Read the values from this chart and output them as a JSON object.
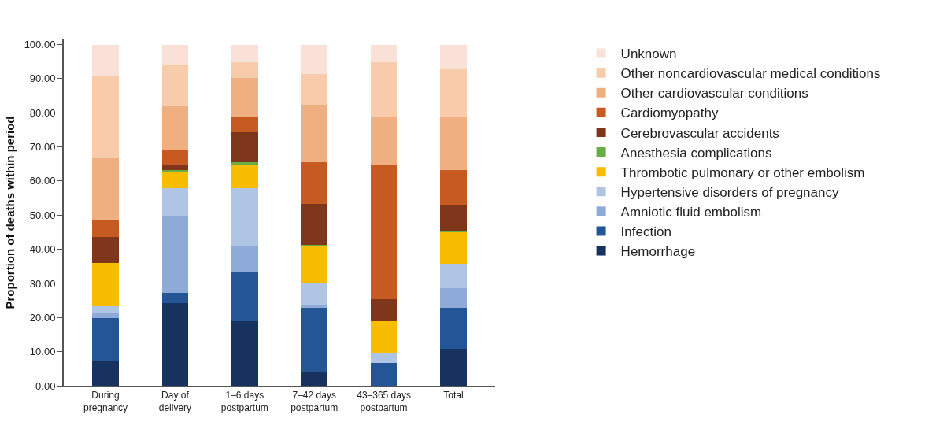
{
  "chart_data": {
    "type": "bar",
    "stacked": true,
    "ylabel": "Proportion of deaths within period",
    "categories": [
      "During\npregnancy",
      "Day of\ndelivery",
      "1–6 days\npostpartum",
      "7–42 days\npostpartum",
      "43–365 days\npostpartum",
      "Total"
    ],
    "ylim": [
      0,
      101.5
    ],
    "yticks": [
      {
        "value": 0,
        "label": "0.00"
      },
      {
        "value": 10,
        "label": "10.00"
      },
      {
        "value": 20,
        "label": "20.00"
      },
      {
        "value": 30,
        "label": "30.00"
      },
      {
        "value": 40,
        "label": "40.00"
      },
      {
        "value": 50,
        "label": "50.00"
      },
      {
        "value": 60,
        "label": "60.00"
      },
      {
        "value": 70,
        "label": "70.00"
      },
      {
        "value": 80,
        "label": "80.00"
      },
      {
        "value": 90,
        "label": "90.00"
      },
      {
        "value": 100,
        "label": "100.00"
      }
    ],
    "legend": "right",
    "series": [
      {
        "name": "Hemorrhage",
        "color": "#17325f",
        "values": [
          7.4,
          24.2,
          18.9,
          4.1,
          0,
          10.9
        ]
      },
      {
        "name": "Infection",
        "color": "#245597",
        "values": [
          12.4,
          3.1,
          14.5,
          18.7,
          6.7,
          11.9
        ]
      },
      {
        "name": "Amniotic fluid embolism",
        "color": "#8eaad8",
        "values": [
          1.4,
          22.5,
          7.4,
          0.8,
          0,
          5.9
        ]
      },
      {
        "name": "Hypertensive disorders of pregnancy",
        "color": "#b0c5e4",
        "values": [
          2.2,
          8.2,
          17.2,
          6.6,
          2.9,
          7.0
        ]
      },
      {
        "name": "Thrombotic pulmonary or other embolism",
        "color": "#f8bc00",
        "values": [
          12.6,
          4.7,
          6.9,
          10.9,
          9.3,
          9.4
        ]
      },
      {
        "name": "Anesthesia complications",
        "color": "#6aad46",
        "values": [
          0,
          0.5,
          0.7,
          0.2,
          0,
          0.3
        ]
      },
      {
        "name": "Cerebrovascular accidents",
        "color": "#80361a",
        "values": [
          7.5,
          1.5,
          8.7,
          12.1,
          6.5,
          7.4
        ]
      },
      {
        "name": "Cardiomyopathy",
        "color": "#c65a20",
        "values": [
          5.1,
          4.5,
          4.6,
          12.0,
          39.3,
          10.3
        ]
      },
      {
        "name": "Other cardiovascular conditions",
        "color": "#efaf80",
        "values": [
          18.0,
          12.6,
          11.3,
          17.0,
          14.3,
          15.5
        ]
      },
      {
        "name": "Other noncardiovascular medical conditions",
        "color": "#f8cbab",
        "values": [
          24.2,
          12.0,
          4.5,
          9.0,
          15.7,
          14.1
        ]
      },
      {
        "name": "Unknown",
        "color": "#f9e1d7",
        "values": [
          9.2,
          6.2,
          5.3,
          8.6,
          5.3,
          7.3
        ]
      }
    ]
  }
}
